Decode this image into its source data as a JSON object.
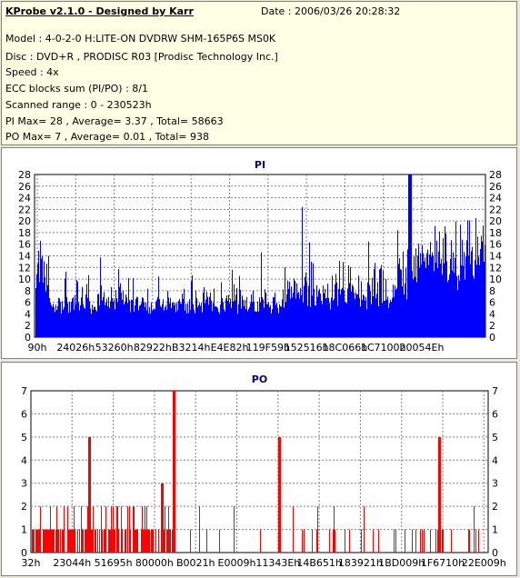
{
  "info": {
    "title": "KProbe v2.1.0 - Designed by Karr",
    "date": "Date : 2006/03/26 20:28:32",
    "lines": [
      "Model : 4-0-2-0 H:LITE-ON DVDRW SHM-165P6S MS0K",
      "Disc : DVD+R , PRODISC R03 [Prodisc Technology Inc.]",
      "Speed : 4x",
      "ECC blocks sum (PI/PO) : 8/1",
      "Scanned range : 0 - 230523h",
      "PI Max= 28 , Average= 3.37 , Total= 58663",
      "PO Max= 7 , Average= 0.01 , Total= 938"
    ]
  },
  "chart_data": [
    {
      "type": "bar",
      "title": "PI",
      "ylim": [
        0,
        28
      ],
      "yticks": [
        0,
        2,
        4,
        6,
        8,
        10,
        12,
        14,
        16,
        18,
        20,
        22,
        24,
        26,
        28
      ],
      "xticks": [
        "90h",
        "24026h",
        "53260h",
        "82922h",
        "B3214h",
        "E4E82h",
        "119F59h",
        "152516h",
        "18C066h",
        "1C7100h",
        "20054Eh"
      ],
      "color": "#0000ff",
      "max": 28,
      "average": 3.37
    },
    {
      "type": "bar",
      "title": "PO",
      "ylim": [
        0,
        7
      ],
      "yticks": [
        0,
        1,
        2,
        3,
        4,
        5,
        6,
        7
      ],
      "xticks": [
        "32h",
        "23044h",
        "51695h",
        "80000h",
        "B0021h",
        "E0009h",
        "11343Eh",
        "14B651h",
        "183921h",
        "1BD009h",
        "1F6710h",
        "22E009h"
      ],
      "color": "#ff0000",
      "max": 7,
      "average": 0.01
    }
  ]
}
